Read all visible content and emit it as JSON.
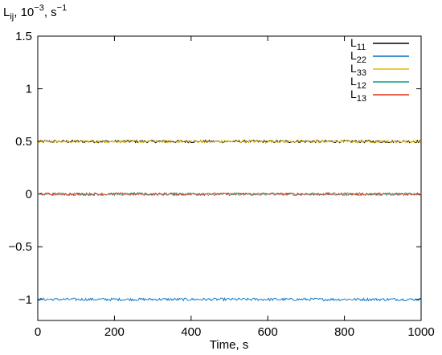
{
  "chart_data": {
    "type": "line",
    "title": "",
    "ylabel": {
      "base": "L",
      "sub": "ij",
      "mid": ", 10",
      "sup1": "−3",
      "unit": ", s",
      "sup2": "−1"
    },
    "xlabel": "Time, s",
    "xlim": [
      0,
      1000
    ],
    "ylim": [
      -1.2,
      1.5
    ],
    "x_ticks": [
      0,
      200,
      400,
      600,
      800,
      1000
    ],
    "x_tick_labels": [
      "0",
      "200",
      "400",
      "600",
      "800",
      "1000"
    ],
    "y_ticks": [
      -1,
      -0.5,
      0,
      0.5,
      1,
      1.5
    ],
    "y_tick_labels": [
      "−1",
      "−0.5",
      "0",
      "0.5",
      "1",
      "1.5"
    ],
    "grid": false,
    "legend_position": "top-right",
    "noise_amplitude": 0.013,
    "sample_count": 400,
    "series": [
      {
        "name": "L",
        "sub": "11",
        "mean": 0.5,
        "color": "#000000"
      },
      {
        "name": "L",
        "sub": "22",
        "mean": -1.0,
        "color": "#0070c0"
      },
      {
        "name": "L",
        "sub": "33",
        "mean": 0.5,
        "color": "#e6b800"
      },
      {
        "name": "L",
        "sub": "12",
        "mean": 0.0,
        "color": "#00a08a"
      },
      {
        "name": "L",
        "sub": "13",
        "mean": 0.0,
        "color": "#e03010"
      }
    ]
  }
}
